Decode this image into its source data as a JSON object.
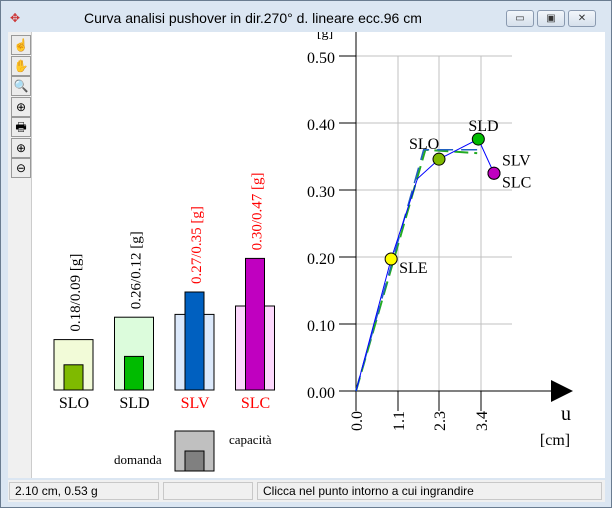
{
  "window": {
    "title": "Curva analisi pushover in dir.270°  d. lineare  ecc.96 cm",
    "minimize": "▭",
    "maximize": "▣",
    "close": "✕"
  },
  "toolbar": [
    {
      "icon": "hand-pointer-icon",
      "glyph": "☝"
    },
    {
      "icon": "hand-pan-icon",
      "glyph": "✋"
    },
    {
      "icon": "zoom-window-icon",
      "glyph": "🔍"
    },
    {
      "icon": "crosshair-icon",
      "glyph": "⊕"
    },
    {
      "icon": "print-icon",
      "glyph": "🖶"
    },
    {
      "icon": "zoom-in-icon",
      "glyph": "⊕"
    },
    {
      "icon": "zoom-out-icon",
      "glyph": "⊖"
    }
  ],
  "bars": [
    {
      "label": "SLO",
      "value_label": "0.18/0.09 [g]",
      "capacity": 0.18,
      "demand": 0.09,
      "color": "#7fba00",
      "fill": "#f2fbd8",
      "text_color": "#000000"
    },
    {
      "label": "SLD",
      "value_label": "0.26/0.12 [g]",
      "capacity": 0.26,
      "demand": 0.12,
      "color": "#00bb00",
      "fill": "#dcfcdc",
      "text_color": "#000000"
    },
    {
      "label": "SLV",
      "value_label": "0.27/0.35 [g]",
      "capacity": 0.27,
      "demand": 0.35,
      "color": "#0060c0",
      "fill": "#dce9fb",
      "text_color": "#ff0000"
    },
    {
      "label": "SLC",
      "value_label": "0.30/0.47 [g]",
      "capacity": 0.3,
      "demand": 0.47,
      "color": "#c000c0",
      "fill": "#fcd8fc",
      "text_color": "#ff0000"
    }
  ],
  "legend": {
    "demand": "domanda",
    "capacity": "capacità"
  },
  "chart_data": {
    "type": "line",
    "ylabel": "[g]",
    "xlabel": "u",
    "xunit": "[cm]",
    "yticks": [
      "0.00",
      "0.10",
      "0.20",
      "0.30",
      "0.40",
      "0.50"
    ],
    "xticks": [
      "0.0",
      "1.1",
      "2.3",
      "3.4"
    ],
    "xtick_values": [
      0,
      1.1,
      2.3,
      3.4
    ],
    "ytick_values": [
      0,
      0.1,
      0.2,
      0.3,
      0.4,
      0.5
    ],
    "curve": [
      [
        0,
        0
      ],
      [
        0.92,
        0.197
      ],
      [
        1.67,
        0.317
      ],
      [
        2.3,
        0.346
      ],
      [
        3.33,
        0.376
      ],
      [
        3.74,
        0.325
      ]
    ],
    "bilinear_blue": [
      [
        0,
        0
      ],
      [
        1.85,
        0.36
      ],
      [
        3.5,
        0.36
      ]
    ],
    "bilinear_green": [
      [
        0,
        0
      ],
      [
        1.9,
        0.36
      ],
      [
        3.3,
        0.355
      ]
    ],
    "points": [
      {
        "label": "SLE",
        "x": 0.92,
        "y": 0.197,
        "color": "#ffff00"
      },
      {
        "label": "SLO",
        "x": 2.3,
        "y": 0.346,
        "color": "#7fba00"
      },
      {
        "label": "SLD",
        "x": 3.33,
        "y": 0.376,
        "color": "#00bb00"
      },
      {
        "label": "SLV",
        "x": 3.74,
        "y": 0.325,
        "color": "#c000c0"
      },
      {
        "label": "SLC",
        "x": 3.74,
        "y": 0.325,
        "color": "#c000c0"
      }
    ]
  },
  "status": {
    "coords": "2.10 cm,     0.53 g",
    "middle": "",
    "hint": "Clicca nel punto intorno a cui ingrandire"
  }
}
